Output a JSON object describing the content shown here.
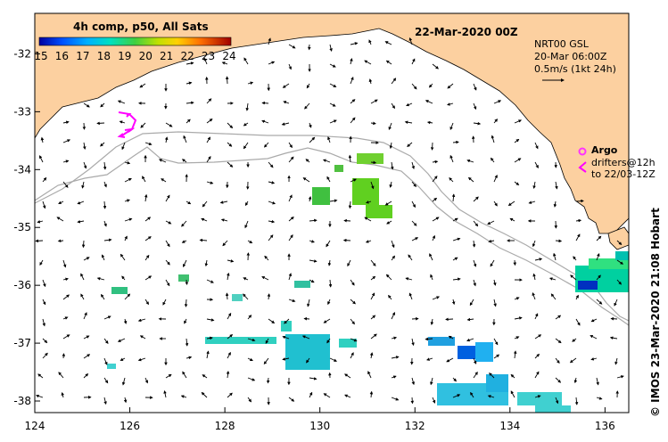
{
  "title": "22-Mar-2020 00Z",
  "colorbar": {
    "title": "4h comp, p50, All Sats",
    "ticks": [
      "15",
      "16",
      "17",
      "18",
      "19",
      "20",
      "21",
      "22",
      "23",
      "24"
    ],
    "min": 15,
    "max": 24
  },
  "info": {
    "line1": "NRT00 GSL",
    "line2": "20-Mar 06:00Z",
    "line3": "0.5m/s (1kt 24h)"
  },
  "legend": {
    "argo": "Argo",
    "drifters_line1": "drifters@12h",
    "drifters_line2": "to 22/03-12Z"
  },
  "credit": "© IMOS 23-Mar-2020 21:08 Hobart",
  "axes": {
    "x_ticks": [
      "124",
      "126",
      "128",
      "130",
      "132",
      "134",
      "136"
    ],
    "y_ticks": [
      "-32",
      "-33",
      "-34",
      "-35",
      "-36",
      "-37",
      "-38"
    ],
    "lon_range": [
      124,
      136.5
    ],
    "lat_range": [
      -31.3,
      -38.2
    ]
  },
  "colors": {
    "land": "#fcd0a0",
    "argo": "#ff33ff",
    "drifter": "#ff00ff",
    "bathymetry": "#aaaaaa"
  }
}
